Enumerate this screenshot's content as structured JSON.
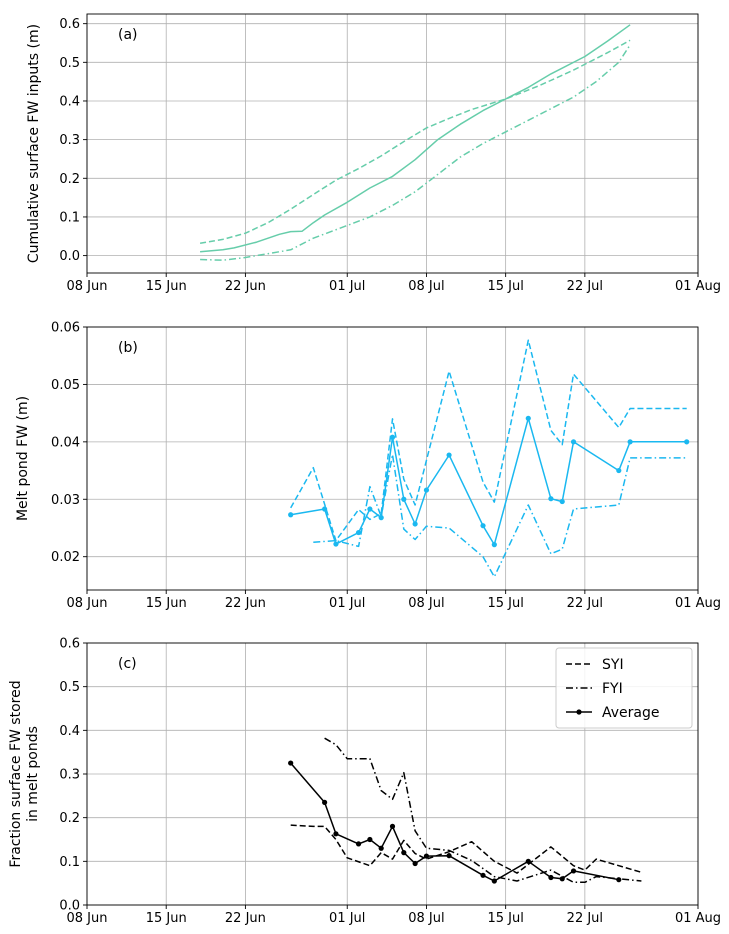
{
  "chart_data": [
    {
      "type": "line",
      "panel_label": "(a)",
      "ylabel": "Cumulative surface FW inputs (m)",
      "xlabel": "",
      "xlim": [
        "2019-06-08",
        "2019-08-01"
      ],
      "ylim": [
        -0.045,
        0.625
      ],
      "xticks": [
        "2019-06-08",
        "2019-06-15",
        "2019-06-22",
        "2019-07-01",
        "2019-07-08",
        "2019-07-15",
        "2019-07-22",
        "2019-08-01"
      ],
      "xticklabels": [
        "08 Jun",
        "15 Jun",
        "22 Jun",
        "01 Jul",
        "08 Jul",
        "15 Jul",
        "22 Jul",
        "01 Aug"
      ],
      "yticks": [
        0.0,
        0.1,
        0.2,
        0.3,
        0.4,
        0.5,
        0.6
      ],
      "yticklabels": [
        "0.0",
        "0.1",
        "0.2",
        "0.3",
        "0.4",
        "0.5",
        "0.6"
      ],
      "grid": true,
      "color": "#66cdaa",
      "series": [
        {
          "name": "Average",
          "style": "solid",
          "markers": false,
          "points": [
            [
              "2019-06-18",
              0.01
            ],
            [
              "2019-06-20",
              0.015
            ],
            [
              "2019-06-21",
              0.02
            ],
            [
              "2019-06-23",
              0.035
            ],
            [
              "2019-06-25",
              0.055
            ],
            [
              "2019-06-26",
              0.062
            ],
            [
              "2019-06-27",
              0.063
            ],
            [
              "2019-06-28",
              0.085
            ],
            [
              "2019-06-29",
              0.105
            ],
            [
              "2019-07-01",
              0.138
            ],
            [
              "2019-07-03",
              0.175
            ],
            [
              "2019-07-05",
              0.205
            ],
            [
              "2019-07-07",
              0.248
            ],
            [
              "2019-07-09",
              0.3
            ],
            [
              "2019-07-11",
              0.34
            ],
            [
              "2019-07-13",
              0.375
            ],
            [
              "2019-07-15",
              0.405
            ],
            [
              "2019-07-17",
              0.435
            ],
            [
              "2019-07-19",
              0.47
            ],
            [
              "2019-07-22",
              0.515
            ],
            [
              "2019-07-24",
              0.555
            ],
            [
              "2019-07-26",
              0.597
            ]
          ]
        },
        {
          "name": "SYI",
          "style": "dashed",
          "markers": false,
          "points": [
            [
              "2019-06-18",
              0.032
            ],
            [
              "2019-06-20",
              0.042
            ],
            [
              "2019-06-22",
              0.058
            ],
            [
              "2019-06-24",
              0.085
            ],
            [
              "2019-06-26",
              0.12
            ],
            [
              "2019-06-28",
              0.158
            ],
            [
              "2019-06-30",
              0.195
            ],
            [
              "2019-07-02",
              0.225
            ],
            [
              "2019-07-04",
              0.258
            ],
            [
              "2019-07-06",
              0.295
            ],
            [
              "2019-07-08",
              0.33
            ],
            [
              "2019-07-10",
              0.355
            ],
            [
              "2019-07-12",
              0.378
            ],
            [
              "2019-07-15",
              0.405
            ],
            [
              "2019-07-18",
              0.44
            ],
            [
              "2019-07-21",
              0.48
            ],
            [
              "2019-07-24",
              0.525
            ],
            [
              "2019-07-26",
              0.557
            ]
          ]
        },
        {
          "name": "FYI",
          "style": "dashdot",
          "markers": false,
          "points": [
            [
              "2019-06-18",
              -0.01
            ],
            [
              "2019-06-20",
              -0.012
            ],
            [
              "2019-06-22",
              -0.005
            ],
            [
              "2019-06-24",
              0.005
            ],
            [
              "2019-06-26",
              0.015
            ],
            [
              "2019-06-28",
              0.045
            ],
            [
              "2019-07-01",
              0.078
            ],
            [
              "2019-07-03",
              0.1
            ],
            [
              "2019-07-05",
              0.13
            ],
            [
              "2019-07-07",
              0.165
            ],
            [
              "2019-07-09",
              0.21
            ],
            [
              "2019-07-11",
              0.255
            ],
            [
              "2019-07-13",
              0.29
            ],
            [
              "2019-07-15",
              0.32
            ],
            [
              "2019-07-17",
              0.35
            ],
            [
              "2019-07-19",
              0.38
            ],
            [
              "2019-07-21",
              0.41
            ],
            [
              "2019-07-23",
              0.45
            ],
            [
              "2019-07-25",
              0.5
            ],
            [
              "2019-07-26",
              0.545
            ]
          ]
        }
      ]
    },
    {
      "type": "line",
      "panel_label": "(b)",
      "ylabel": "Melt pond FW (m)",
      "xlabel": "",
      "xlim": [
        "2019-06-08",
        "2019-08-01"
      ],
      "ylim": [
        0.0142,
        0.06
      ],
      "xticks": [
        "2019-06-08",
        "2019-06-15",
        "2019-06-22",
        "2019-07-01",
        "2019-07-08",
        "2019-07-15",
        "2019-07-22",
        "2019-08-01"
      ],
      "xticklabels": [
        "08 Jun",
        "15 Jun",
        "22 Jun",
        "01 Jul",
        "08 Jul",
        "15 Jul",
        "22 Jul",
        "01 Aug"
      ],
      "yticks": [
        0.02,
        0.03,
        0.04,
        0.05,
        0.06
      ],
      "yticklabels": [
        "0.02",
        "0.03",
        "0.04",
        "0.05",
        "0.06"
      ],
      "grid": true,
      "color": "#1ab8f0",
      "series": [
        {
          "name": "Average",
          "style": "solid",
          "markers": true,
          "points": [
            [
              "2019-06-26",
              0.0273
            ],
            [
              "2019-06-29",
              0.0283
            ],
            [
              "2019-06-30",
              0.0222
            ],
            [
              "2019-07-02",
              0.0242
            ],
            [
              "2019-07-03",
              0.0283
            ],
            [
              "2019-07-04",
              0.0268
            ],
            [
              "2019-07-05",
              0.0408
            ],
            [
              "2019-07-06",
              0.03
            ],
            [
              "2019-07-07",
              0.0257
            ],
            [
              "2019-07-08",
              0.0316
            ],
            [
              "2019-07-10",
              0.0377
            ],
            [
              "2019-07-13",
              0.0254
            ],
            [
              "2019-07-14",
              0.0221
            ],
            [
              "2019-07-17",
              0.0441
            ],
            [
              "2019-07-19",
              0.0301
            ],
            [
              "2019-07-20",
              0.0296
            ],
            [
              "2019-07-21",
              0.04
            ],
            [
              "2019-07-25",
              0.035
            ],
            [
              "2019-07-26",
              0.04
            ],
            [
              "2019-07-31",
              0.04
            ]
          ]
        },
        {
          "name": "SYI",
          "style": "dashed",
          "markers": false,
          "points": [
            [
              "2019-06-26",
              0.0285
            ],
            [
              "2019-06-28",
              0.0355
            ],
            [
              "2019-06-30",
              0.0228
            ],
            [
              "2019-07-02",
              0.0282
            ],
            [
              "2019-07-03",
              0.0265
            ],
            [
              "2019-07-04",
              0.0275
            ],
            [
              "2019-07-05",
              0.044
            ],
            [
              "2019-07-06",
              0.0335
            ],
            [
              "2019-07-07",
              0.029
            ],
            [
              "2019-07-10",
              0.0523
            ],
            [
              "2019-07-13",
              0.033
            ],
            [
              "2019-07-14",
              0.0295
            ],
            [
              "2019-07-17",
              0.0577
            ],
            [
              "2019-07-19",
              0.042
            ],
            [
              "2019-07-20",
              0.0395
            ],
            [
              "2019-07-21",
              0.0518
            ],
            [
              "2019-07-25",
              0.0425
            ],
            [
              "2019-07-26",
              0.0458
            ],
            [
              "2019-07-31",
              0.0458
            ]
          ]
        },
        {
          "name": "FYI",
          "style": "dashdot",
          "markers": false,
          "points": [
            [
              "2019-06-28",
              0.0225
            ],
            [
              "2019-06-30",
              0.0228
            ],
            [
              "2019-07-02",
              0.0218
            ],
            [
              "2019-07-03",
              0.0322
            ],
            [
              "2019-07-04",
              0.027
            ],
            [
              "2019-07-05",
              0.0378
            ],
            [
              "2019-07-06",
              0.0248
            ],
            [
              "2019-07-07",
              0.023
            ],
            [
              "2019-07-08",
              0.0253
            ],
            [
              "2019-07-10",
              0.025
            ],
            [
              "2019-07-13",
              0.02
            ],
            [
              "2019-07-14",
              0.0165
            ],
            [
              "2019-07-17",
              0.029
            ],
            [
              "2019-07-19",
              0.0205
            ],
            [
              "2019-07-20",
              0.0213
            ],
            [
              "2019-07-21",
              0.0283
            ],
            [
              "2019-07-25",
              0.029
            ],
            [
              "2019-07-26",
              0.0372
            ],
            [
              "2019-07-31",
              0.0372
            ]
          ]
        }
      ]
    },
    {
      "type": "line",
      "panel_label": "(c)",
      "ylabel": "Fraction surface FW stored\nin melt ponds",
      "xlabel": "",
      "xlim": [
        "2019-06-08",
        "2019-08-01"
      ],
      "ylim": [
        0.0,
        0.6
      ],
      "xticks": [
        "2019-06-08",
        "2019-06-15",
        "2019-06-22",
        "2019-07-01",
        "2019-07-08",
        "2019-07-15",
        "2019-07-22",
        "2019-08-01"
      ],
      "xticklabels": [
        "08 Jun",
        "15 Jun",
        "22 Jun",
        "01 Jul",
        "08 Jul",
        "15 Jul",
        "22 Jul",
        "01 Aug"
      ],
      "yticks": [
        0.0,
        0.1,
        0.2,
        0.3,
        0.4,
        0.5,
        0.6
      ],
      "yticklabels": [
        "0.0",
        "0.1",
        "0.2",
        "0.3",
        "0.4",
        "0.5",
        "0.6"
      ],
      "grid": true,
      "color": "#000000",
      "legend": {
        "position": "top-right",
        "entries": [
          "SYI",
          "FYI",
          "Average"
        ]
      },
      "series": [
        {
          "name": "SYI",
          "style": "dashed",
          "markers": false,
          "points": [
            [
              "2019-06-26",
              0.183
            ],
            [
              "2019-06-28",
              0.18
            ],
            [
              "2019-06-29",
              0.18
            ],
            [
              "2019-06-30",
              0.15
            ],
            [
              "2019-07-01",
              0.108
            ],
            [
              "2019-07-03",
              0.09
            ],
            [
              "2019-07-04",
              0.12
            ],
            [
              "2019-07-05",
              0.105
            ],
            [
              "2019-07-06",
              0.148
            ],
            [
              "2019-07-07",
              0.118
            ],
            [
              "2019-07-08",
              0.105
            ],
            [
              "2019-07-10",
              0.122
            ],
            [
              "2019-07-12",
              0.145
            ],
            [
              "2019-07-14",
              0.1
            ],
            [
              "2019-07-16",
              0.073
            ],
            [
              "2019-07-19",
              0.133
            ],
            [
              "2019-07-21",
              0.09
            ],
            [
              "2019-07-22",
              0.08
            ],
            [
              "2019-07-23",
              0.105
            ],
            [
              "2019-07-25",
              0.09
            ],
            [
              "2019-07-27",
              0.075
            ]
          ]
        },
        {
          "name": "FYI",
          "style": "dashdot",
          "markers": false,
          "points": [
            [
              "2019-06-29",
              0.382
            ],
            [
              "2019-06-30",
              0.367
            ],
            [
              "2019-07-01",
              0.335
            ],
            [
              "2019-07-03",
              0.335
            ],
            [
              "2019-07-04",
              0.262
            ],
            [
              "2019-07-05",
              0.242
            ],
            [
              "2019-07-06",
              0.303
            ],
            [
              "2019-07-07",
              0.17
            ],
            [
              "2019-07-08",
              0.13
            ],
            [
              "2019-07-10",
              0.125
            ],
            [
              "2019-07-12",
              0.102
            ],
            [
              "2019-07-14",
              0.065
            ],
            [
              "2019-07-16",
              0.055
            ],
            [
              "2019-07-19",
              0.08
            ],
            [
              "2019-07-21",
              0.052
            ],
            [
              "2019-07-22",
              0.052
            ],
            [
              "2019-07-23",
              0.065
            ],
            [
              "2019-07-25",
              0.06
            ],
            [
              "2019-07-27",
              0.055
            ]
          ]
        },
        {
          "name": "Average",
          "style": "solid",
          "markers": true,
          "points": [
            [
              "2019-06-26",
              0.325
            ],
            [
              "2019-06-29",
              0.235
            ],
            [
              "2019-06-30",
              0.163
            ],
            [
              "2019-07-02",
              0.14
            ],
            [
              "2019-07-03",
              0.15
            ],
            [
              "2019-07-04",
              0.13
            ],
            [
              "2019-07-05",
              0.18
            ],
            [
              "2019-07-06",
              0.12
            ],
            [
              "2019-07-07",
              0.095
            ],
            [
              "2019-07-08",
              0.112
            ],
            [
              "2019-07-10",
              0.113
            ],
            [
              "2019-07-13",
              0.068
            ],
            [
              "2019-07-14",
              0.055
            ],
            [
              "2019-07-17",
              0.1
            ],
            [
              "2019-07-19",
              0.063
            ],
            [
              "2019-07-20",
              0.06
            ],
            [
              "2019-07-21",
              0.078
            ],
            [
              "2019-07-25",
              0.058
            ]
          ]
        }
      ]
    }
  ]
}
